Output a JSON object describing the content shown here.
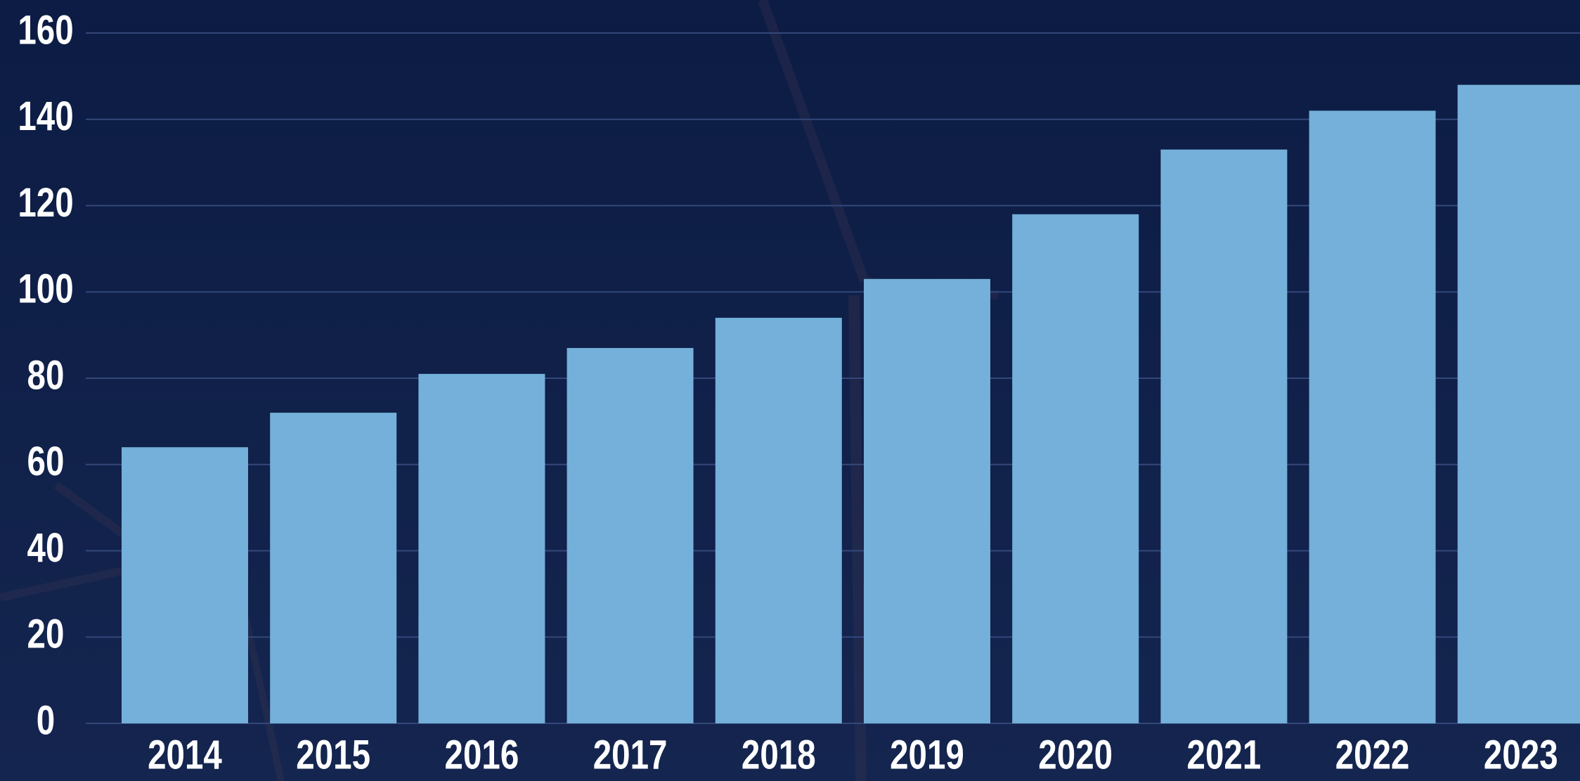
{
  "chart_data": {
    "type": "bar",
    "categories": [
      "2014",
      "2015",
      "2016",
      "2017",
      "2018",
      "2019",
      "2020",
      "2021",
      "2022",
      "2023"
    ],
    "values": [
      64,
      72,
      81,
      87,
      94,
      103,
      118,
      133,
      142,
      148
    ],
    "color": "#74b0d9",
    "ylim": [
      0,
      160
    ],
    "yticks": [
      0,
      20,
      40,
      60,
      80,
      100,
      120,
      140,
      160
    ],
    "grid": true
  }
}
